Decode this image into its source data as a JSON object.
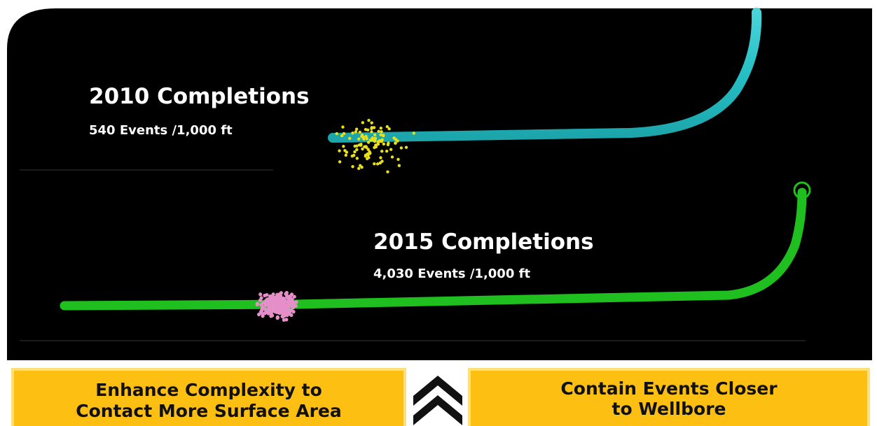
{
  "wells": [
    {
      "title": "2010 Completions",
      "events": "540 Events /1,000 ft"
    },
    {
      "title": "2015 Completions",
      "events": "4,030 Events /1,000 ft"
    }
  ],
  "boxes": [
    {
      "lines": [
        "Enhance Complexity to",
        "Contact More Surface Area"
      ]
    },
    {
      "lines": [
        "Contain Events Closer",
        "to Wellbore"
      ]
    }
  ]
}
